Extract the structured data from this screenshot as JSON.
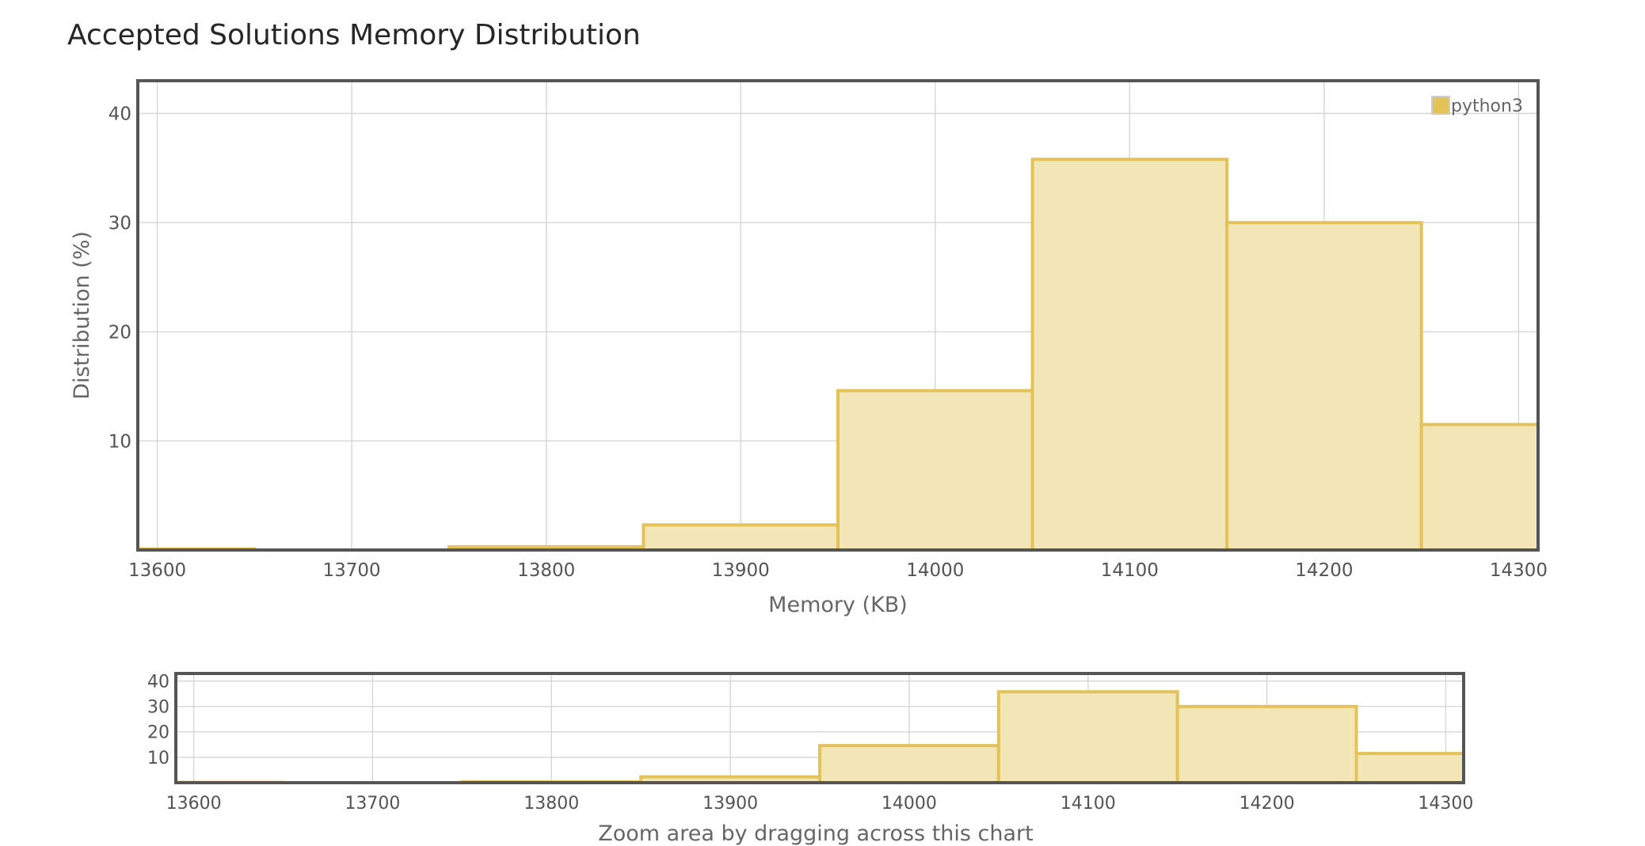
{
  "title": "Accepted Solutions Memory Distribution",
  "legend": {
    "label": "python3",
    "color": "#e4c25a"
  },
  "overview_caption": "Zoom area by dragging across this chart",
  "colors": {
    "bar_fill": "#f3e6b6",
    "bar_stroke": "#e4c25a",
    "frame": "#555555",
    "grid": "#d6d6d6"
  },
  "chart_data": [
    {
      "type": "bar",
      "role": "main",
      "xlabel": "Memory (KB)",
      "ylabel": "Distribution (%)",
      "xlim": [
        13590,
        14310
      ],
      "ylim": [
        0,
        43
      ],
      "xticks": [
        13600,
        13700,
        13800,
        13900,
        14000,
        14100,
        14200,
        14300
      ],
      "yticks": [
        10,
        20,
        30,
        40
      ],
      "grid": true,
      "legend_position": "top-right",
      "series": [
        {
          "name": "python3",
          "bins": [
            {
              "x0": 13590,
              "x1": 13650,
              "value": 0.1
            },
            {
              "x0": 13650,
              "x1": 13750,
              "value": 0.0
            },
            {
              "x0": 13750,
              "x1": 13850,
              "value": 0.3
            },
            {
              "x0": 13850,
              "x1": 13950,
              "value": 2.3
            },
            {
              "x0": 13950,
              "x1": 14050,
              "value": 14.6
            },
            {
              "x0": 14050,
              "x1": 14150,
              "value": 35.8
            },
            {
              "x0": 14150,
              "x1": 14250,
              "value": 30.0
            },
            {
              "x0": 14250,
              "x1": 14310,
              "value": 11.5
            }
          ]
        }
      ]
    },
    {
      "type": "bar",
      "role": "overview",
      "xlim": [
        13590,
        14310
      ],
      "ylim": [
        0,
        43
      ],
      "xticks": [
        13600,
        13700,
        13800,
        13900,
        14000,
        14100,
        14200,
        14300
      ],
      "yticks": [
        10,
        20,
        30,
        40
      ],
      "grid": true,
      "series": [
        {
          "name": "python3",
          "bins": [
            {
              "x0": 13590,
              "x1": 13650,
              "value": 0.1
            },
            {
              "x0": 13650,
              "x1": 13750,
              "value": 0.0
            },
            {
              "x0": 13750,
              "x1": 13850,
              "value": 0.3
            },
            {
              "x0": 13850,
              "x1": 13950,
              "value": 2.3
            },
            {
              "x0": 13950,
              "x1": 14050,
              "value": 14.6
            },
            {
              "x0": 14050,
              "x1": 14150,
              "value": 35.8
            },
            {
              "x0": 14150,
              "x1": 14250,
              "value": 30.0
            },
            {
              "x0": 14250,
              "x1": 14310,
              "value": 11.5
            }
          ]
        }
      ]
    }
  ]
}
